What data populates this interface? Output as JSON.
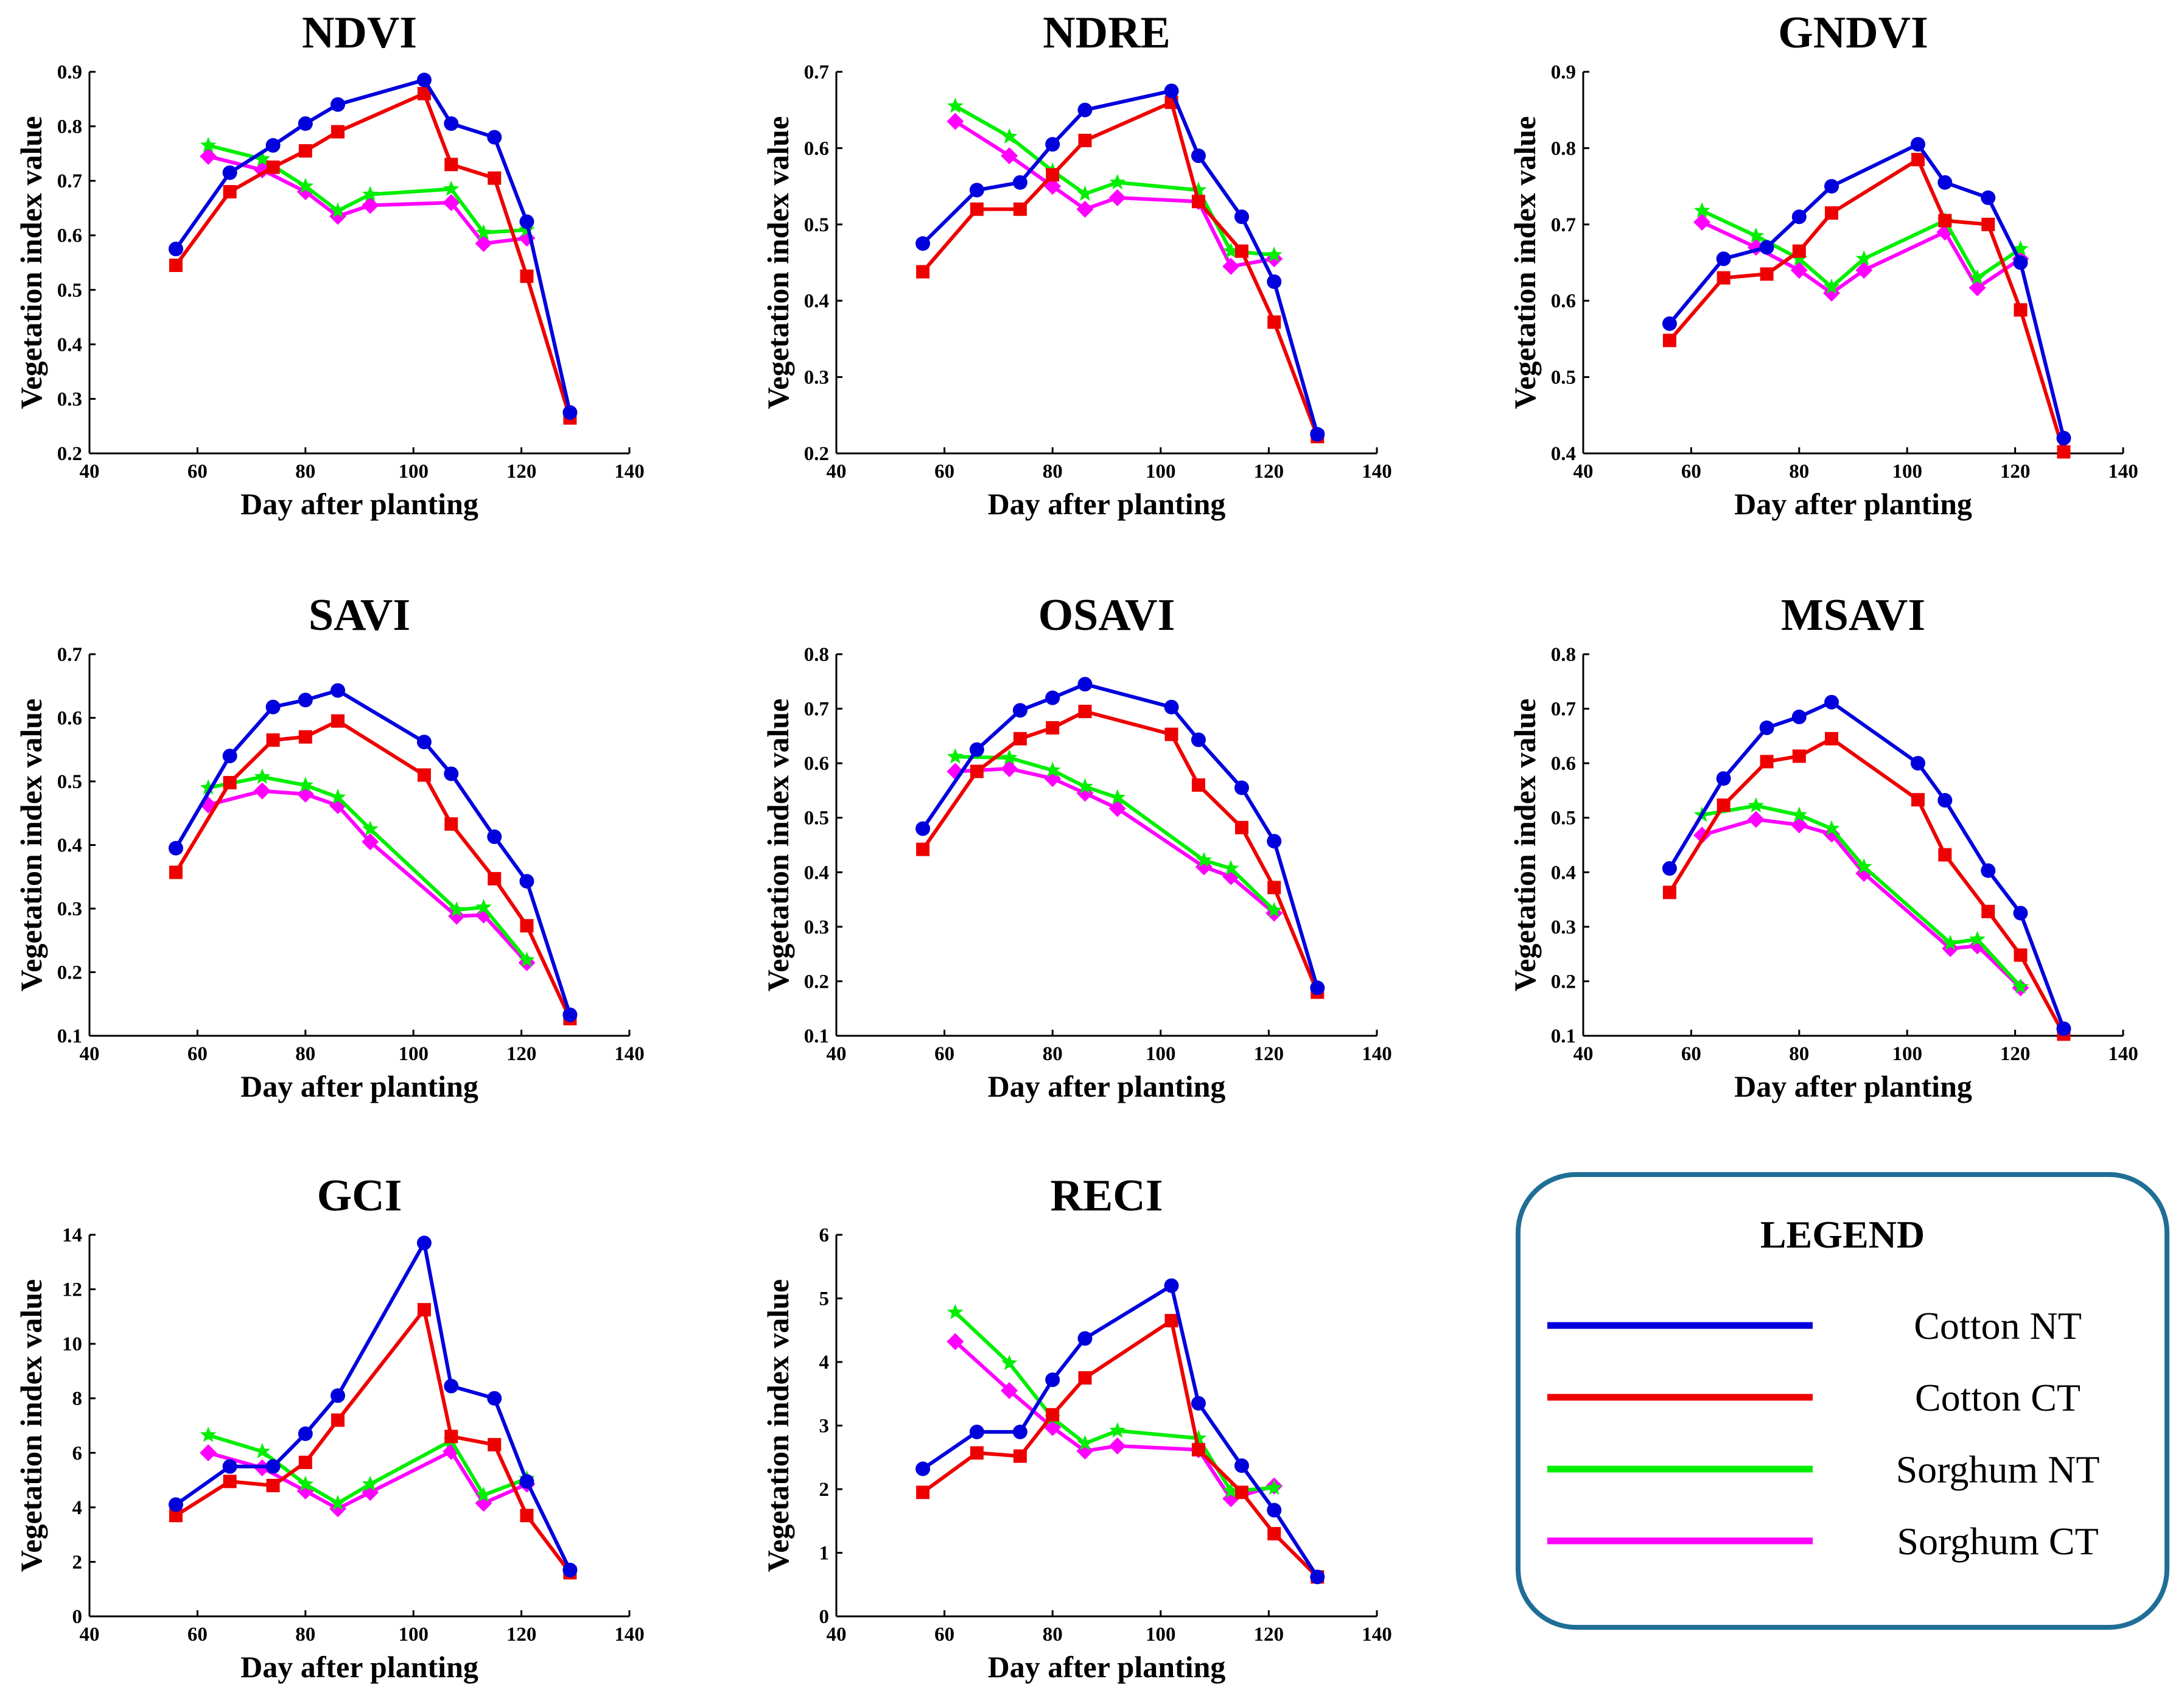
{
  "legend": {
    "title": "LEGEND",
    "entries": [
      {
        "label": "Cotton NT",
        "color": "#0000dd"
      },
      {
        "label": "Cotton CT",
        "color": "#ee0000"
      },
      {
        "label": "Sorghum NT",
        "color": "#00ee00"
      },
      {
        "label": "Sorghum CT",
        "color": "#ff00ff"
      }
    ],
    "border_color": "#1f6e96"
  },
  "series_styles": [
    {
      "name": "Cotton NT",
      "color": "#0000dd",
      "marker": "circle"
    },
    {
      "name": "Cotton CT",
      "color": "#ee0000",
      "marker": "square"
    },
    {
      "name": "Sorghum NT",
      "color": "#00ee00",
      "marker": "star"
    },
    {
      "name": "Sorghum CT",
      "color": "#ff00ff",
      "marker": "diamond"
    }
  ],
  "chart_data": [
    {
      "type": "line",
      "title": "NDVI",
      "xlabel": "Day after planting",
      "ylabel": "Vegetation index value",
      "xlim": [
        40,
        140
      ],
      "xticks": [
        "40",
        "60",
        "80",
        "100",
        "120",
        "140"
      ],
      "ylim": [
        0.2,
        0.9
      ],
      "yticks": [
        "0.2",
        "0.3",
        "0.4",
        "0.5",
        "0.6",
        "0.7",
        "0.8",
        "0.9"
      ],
      "series": [
        {
          "name": "Cotton NT",
          "x": [
            56,
            66,
            74,
            80,
            86,
            102,
            107,
            115,
            121,
            129
          ],
          "y": [
            0.575,
            0.715,
            0.765,
            0.805,
            0.84,
            0.885,
            0.805,
            0.78,
            0.625,
            0.275
          ]
        },
        {
          "name": "Cotton CT",
          "x": [
            56,
            66,
            74,
            80,
            86,
            102,
            107,
            115,
            121,
            129
          ],
          "y": [
            0.545,
            0.68,
            0.725,
            0.755,
            0.79,
            0.86,
            0.73,
            0.705,
            0.525,
            0.265
          ]
        },
        {
          "name": "Sorghum NT",
          "x": [
            62,
            72,
            80,
            86,
            92,
            107,
            113,
            121
          ],
          "y": [
            0.765,
            0.74,
            0.69,
            0.645,
            0.675,
            0.685,
            0.605,
            0.61
          ]
        },
        {
          "name": "Sorghum CT",
          "x": [
            62,
            72,
            80,
            86,
            92,
            107,
            113,
            121
          ],
          "y": [
            0.745,
            0.72,
            0.68,
            0.635,
            0.655,
            0.66,
            0.585,
            0.595
          ]
        }
      ]
    },
    {
      "type": "line",
      "title": "NDRE",
      "xlabel": "Day after planting",
      "ylabel": "Vegetation index value",
      "xlim": [
        40,
        140
      ],
      "xticks": [
        "40",
        "60",
        "80",
        "100",
        "120",
        "140"
      ],
      "ylim": [
        0.2,
        0.7
      ],
      "yticks": [
        "0.2",
        "0.3",
        "0.4",
        "0.5",
        "0.6",
        "0.7"
      ],
      "series": [
        {
          "name": "Cotton NT",
          "x": [
            56,
            66,
            74,
            80,
            86,
            102,
            107,
            115,
            121,
            129
          ],
          "y": [
            0.475,
            0.545,
            0.555,
            0.605,
            0.65,
            0.675,
            0.59,
            0.51,
            0.425,
            0.225
          ]
        },
        {
          "name": "Cotton CT",
          "x": [
            56,
            66,
            74,
            80,
            86,
            102,
            107,
            115,
            121,
            129
          ],
          "y": [
            0.438,
            0.52,
            0.52,
            0.565,
            0.61,
            0.66,
            0.53,
            0.465,
            0.372,
            0.222
          ]
        },
        {
          "name": "Sorghum NT",
          "x": [
            62,
            72,
            80,
            86,
            92,
            107,
            113,
            121
          ],
          "y": [
            0.655,
            0.615,
            0.57,
            0.54,
            0.555,
            0.545,
            0.465,
            0.46
          ]
        },
        {
          "name": "Sorghum CT",
          "x": [
            62,
            72,
            80,
            86,
            92,
            107,
            113,
            121
          ],
          "y": [
            0.635,
            0.59,
            0.55,
            0.52,
            0.535,
            0.53,
            0.445,
            0.455
          ]
        }
      ]
    },
    {
      "type": "line",
      "title": "GNDVI",
      "xlabel": "Day after planting",
      "ylabel": "Vegetation index value",
      "xlim": [
        40,
        140
      ],
      "xticks": [
        "40",
        "60",
        "80",
        "100",
        "120",
        "140"
      ],
      "ylim": [
        0.4,
        0.9
      ],
      "yticks": [
        "0.4",
        "0.5",
        "0.6",
        "0.7",
        "0.8",
        "0.9"
      ],
      "series": [
        {
          "name": "Cotton NT",
          "x": [
            56,
            66,
            74,
            80,
            86,
            102,
            107,
            115,
            121,
            129
          ],
          "y": [
            0.57,
            0.655,
            0.67,
            0.71,
            0.75,
            0.805,
            0.755,
            0.735,
            0.65,
            0.42
          ]
        },
        {
          "name": "Cotton CT",
          "x": [
            56,
            66,
            74,
            80,
            86,
            102,
            107,
            115,
            121,
            129
          ],
          "y": [
            0.548,
            0.63,
            0.635,
            0.665,
            0.715,
            0.785,
            0.705,
            0.7,
            0.588,
            0.402
          ]
        },
        {
          "name": "Sorghum NT",
          "x": [
            62,
            72,
            80,
            86,
            92,
            107,
            113,
            121
          ],
          "y": [
            0.718,
            0.685,
            0.655,
            0.618,
            0.655,
            0.705,
            0.63,
            0.668
          ]
        },
        {
          "name": "Sorghum CT",
          "x": [
            62,
            72,
            80,
            86,
            92,
            107,
            113,
            121
          ],
          "y": [
            0.703,
            0.67,
            0.64,
            0.61,
            0.64,
            0.69,
            0.617,
            0.655
          ]
        }
      ]
    },
    {
      "type": "line",
      "title": "SAVI",
      "xlabel": "Day after planting",
      "ylabel": "Vegetation index value",
      "xlim": [
        40,
        140
      ],
      "xticks": [
        "40",
        "60",
        "80",
        "100",
        "120",
        "140"
      ],
      "ylim": [
        0.1,
        0.7
      ],
      "yticks": [
        "0.1",
        "0.2",
        "0.3",
        "0.4",
        "0.5",
        "0.6",
        "0.7"
      ],
      "series": [
        {
          "name": "Cotton NT",
          "x": [
            56,
            66,
            74,
            80,
            86,
            102,
            107,
            115,
            121,
            129
          ],
          "y": [
            0.395,
            0.54,
            0.617,
            0.628,
            0.643,
            0.562,
            0.512,
            0.413,
            0.343,
            0.133
          ]
        },
        {
          "name": "Cotton CT",
          "x": [
            56,
            66,
            74,
            80,
            86,
            102,
            107,
            115,
            121,
            129
          ],
          "y": [
            0.357,
            0.498,
            0.565,
            0.57,
            0.595,
            0.51,
            0.433,
            0.347,
            0.273,
            0.127
          ]
        },
        {
          "name": "Sorghum NT",
          "x": [
            62,
            72,
            80,
            86,
            92,
            108,
            113,
            121
          ],
          "y": [
            0.49,
            0.507,
            0.494,
            0.475,
            0.425,
            0.298,
            0.302,
            0.219
          ]
        },
        {
          "name": "Sorghum CT",
          "x": [
            62,
            72,
            80,
            86,
            92,
            108,
            113,
            121
          ],
          "y": [
            0.463,
            0.485,
            0.48,
            0.462,
            0.405,
            0.288,
            0.29,
            0.215
          ]
        }
      ]
    },
    {
      "type": "line",
      "title": "OSAVI",
      "xlabel": "Day after planting",
      "ylabel": "Vegetation index value",
      "xlim": [
        40,
        140
      ],
      "xticks": [
        "40",
        "60",
        "80",
        "100",
        "120",
        "140"
      ],
      "ylim": [
        0.1,
        0.8
      ],
      "yticks": [
        "0.1",
        "0.2",
        "0.3",
        "0.4",
        "0.5",
        "0.6",
        "0.7",
        "0.8"
      ],
      "series": [
        {
          "name": "Cotton NT",
          "x": [
            56,
            66,
            74,
            80,
            86,
            102,
            107,
            115,
            121,
            129
          ],
          "y": [
            0.48,
            0.625,
            0.697,
            0.72,
            0.745,
            0.703,
            0.643,
            0.555,
            0.457,
            0.188
          ]
        },
        {
          "name": "Cotton CT",
          "x": [
            56,
            66,
            74,
            80,
            86,
            102,
            107,
            115,
            121,
            129
          ],
          "y": [
            0.442,
            0.585,
            0.645,
            0.665,
            0.695,
            0.653,
            0.56,
            0.482,
            0.372,
            0.18
          ]
        },
        {
          "name": "Sorghum NT",
          "x": [
            62,
            72,
            80,
            86,
            92,
            108,
            113,
            121
          ],
          "y": [
            0.612,
            0.61,
            0.587,
            0.557,
            0.537,
            0.422,
            0.407,
            0.33
          ]
        },
        {
          "name": "Sorghum CT",
          "x": [
            62,
            72,
            80,
            86,
            92,
            108,
            113,
            121
          ],
          "y": [
            0.585,
            0.59,
            0.572,
            0.545,
            0.517,
            0.41,
            0.392,
            0.325
          ]
        }
      ]
    },
    {
      "type": "line",
      "title": "MSAVI",
      "xlabel": "Day after planting",
      "ylabel": "Vegetation index value",
      "xlim": [
        40,
        140
      ],
      "xticks": [
        "40",
        "60",
        "80",
        "100",
        "120",
        "140"
      ],
      "ylim": [
        0.1,
        0.8
      ],
      "yticks": [
        "0.1",
        "0.2",
        "0.3",
        "0.4",
        "0.5",
        "0.6",
        "0.7",
        "0.8"
      ],
      "series": [
        {
          "name": "Cotton NT",
          "x": [
            56,
            66,
            74,
            80,
            86,
            102,
            107,
            115,
            121,
            129
          ],
          "y": [
            0.407,
            0.572,
            0.665,
            0.685,
            0.712,
            0.6,
            0.532,
            0.403,
            0.325,
            0.113
          ]
        },
        {
          "name": "Cotton CT",
          "x": [
            56,
            66,
            74,
            80,
            86,
            102,
            107,
            115,
            121,
            129
          ],
          "y": [
            0.363,
            0.523,
            0.603,
            0.613,
            0.645,
            0.533,
            0.432,
            0.328,
            0.248,
            0.103
          ]
        },
        {
          "name": "Sorghum NT",
          "x": [
            62,
            72,
            80,
            86,
            92,
            108,
            113,
            121
          ],
          "y": [
            0.505,
            0.522,
            0.505,
            0.48,
            0.41,
            0.27,
            0.277,
            0.19
          ]
        },
        {
          "name": "Sorghum CT",
          "x": [
            62,
            72,
            80,
            86,
            92,
            108,
            113,
            121
          ],
          "y": [
            0.468,
            0.497,
            0.487,
            0.47,
            0.398,
            0.26,
            0.265,
            0.188
          ]
        }
      ]
    },
    {
      "type": "line",
      "title": "GCI",
      "xlabel": "Day after planting",
      "ylabel": "Vegetation index value",
      "xlim": [
        40,
        140
      ],
      "xticks": [
        "40",
        "60",
        "80",
        "100",
        "120",
        "140"
      ],
      "ylim": [
        0,
        14
      ],
      "yticks": [
        "0",
        "2",
        "4",
        "6",
        "8",
        "10",
        "12",
        "14"
      ],
      "series": [
        {
          "name": "Cotton NT",
          "x": [
            56,
            66,
            74,
            80,
            86,
            102,
            107,
            115,
            121,
            129
          ],
          "y": [
            4.1,
            5.5,
            5.5,
            6.7,
            8.1,
            13.7,
            8.45,
            8.0,
            4.95,
            1.7
          ]
        },
        {
          "name": "Cotton CT",
          "x": [
            56,
            66,
            74,
            80,
            86,
            102,
            107,
            115,
            121,
            129
          ],
          "y": [
            3.7,
            4.95,
            4.8,
            5.65,
            7.2,
            11.25,
            6.6,
            6.3,
            3.7,
            1.6
          ]
        },
        {
          "name": "Sorghum NT",
          "x": [
            62,
            72,
            80,
            86,
            92,
            107,
            113,
            121
          ],
          "y": [
            6.65,
            6.05,
            4.85,
            4.15,
            4.85,
            6.45,
            4.45,
            5.05
          ]
        },
        {
          "name": "Sorghum CT",
          "x": [
            62,
            72,
            80,
            86,
            92,
            107,
            113,
            121
          ],
          "y": [
            6.0,
            5.45,
            4.6,
            3.95,
            4.55,
            6.05,
            4.15,
            4.85
          ]
        }
      ]
    },
    {
      "type": "line",
      "title": "RECI",
      "xlabel": "Day after planting",
      "ylabel": "Vegetation index value",
      "xlim": [
        40,
        140
      ],
      "xticks": [
        "40",
        "60",
        "80",
        "100",
        "120",
        "140"
      ],
      "ylim": [
        0,
        6
      ],
      "yticks": [
        "0",
        "1",
        "2",
        "3",
        "4",
        "5",
        "6"
      ],
      "series": [
        {
          "name": "Cotton NT",
          "x": [
            56,
            66,
            74,
            80,
            86,
            102,
            107,
            115,
            121,
            129
          ],
          "y": [
            2.32,
            2.9,
            2.9,
            3.72,
            4.37,
            5.2,
            3.35,
            2.37,
            1.67,
            0.62
          ]
        },
        {
          "name": "Cotton CT",
          "x": [
            56,
            66,
            74,
            80,
            86,
            102,
            107,
            115,
            121,
            129
          ],
          "y": [
            1.95,
            2.57,
            2.52,
            3.17,
            3.75,
            4.65,
            2.62,
            1.95,
            1.3,
            0.62
          ]
        },
        {
          "name": "Sorghum NT",
          "x": [
            62,
            72,
            80,
            86,
            92,
            107,
            113,
            121
          ],
          "y": [
            4.78,
            3.98,
            3.12,
            2.72,
            2.92,
            2.8,
            1.97,
            2.02
          ]
        },
        {
          "name": "Sorghum CT",
          "x": [
            62,
            72,
            80,
            86,
            92,
            107,
            113,
            121
          ],
          "y": [
            4.32,
            3.55,
            2.97,
            2.6,
            2.68,
            2.62,
            1.85,
            2.05
          ]
        }
      ]
    }
  ]
}
